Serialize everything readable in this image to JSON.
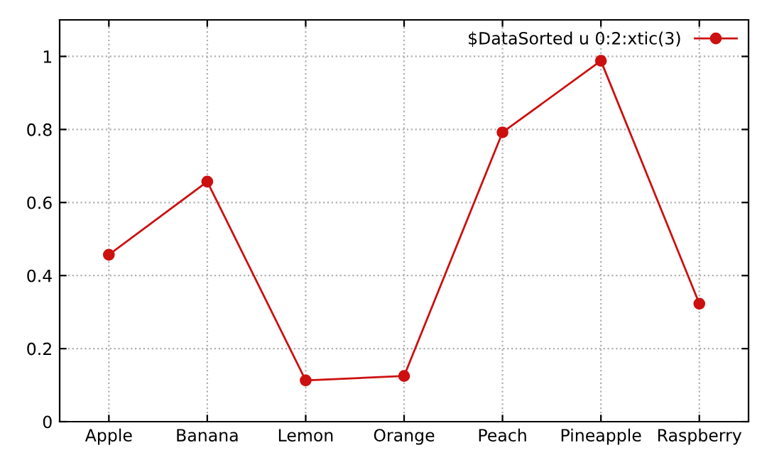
{
  "chart_data": {
    "type": "line",
    "categories": [
      "Apple",
      "Banana",
      "Lemon",
      "Orange",
      "Peach",
      "Pineapple",
      "Raspberry"
    ],
    "series": [
      {
        "name": "$DataSorted u 0:2:xtic(3)",
        "color": "#cc1010",
        "values": [
          0.457,
          0.657,
          0.113,
          0.125,
          0.792,
          0.988,
          0.323
        ]
      }
    ],
    "ylim": [
      0,
      1.1
    ],
    "yticks": [
      0,
      0.2,
      0.4,
      0.6,
      0.8,
      1
    ],
    "grid": true,
    "legend": "top right",
    "marker": "circle",
    "line_style": "solid"
  }
}
